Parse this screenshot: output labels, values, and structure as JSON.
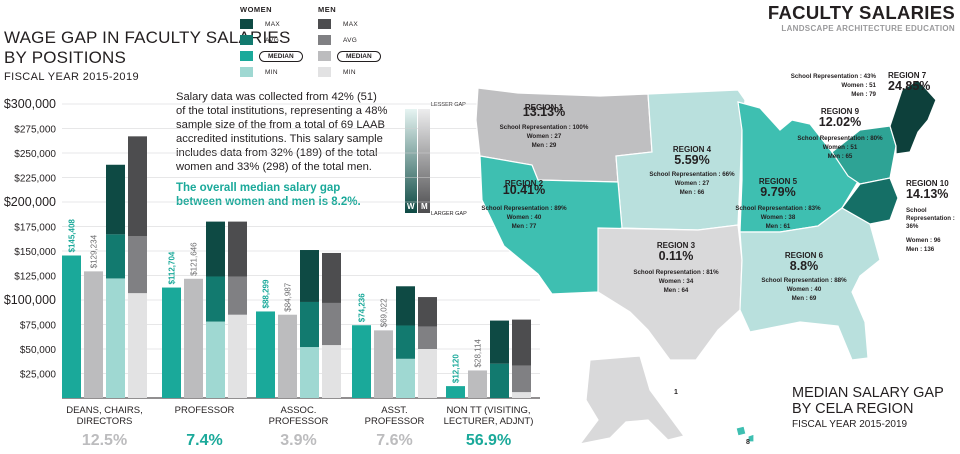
{
  "left_title": {
    "line1": "WAGE GAP IN FACULTY SALARIES",
    "line2": "BY POSITIONS",
    "sub": "FISCAL YEAR 2015-2019"
  },
  "legend": {
    "women_header": "WOMEN",
    "men_header": "MEN",
    "items": [
      "MAX",
      "AVG",
      "MEDIAN",
      "MIN"
    ],
    "women_colors": [
      "#0e4a44",
      "#127a6f",
      "#1aa99a",
      "#9fd8d2"
    ],
    "men_colors": [
      "#4d4d4f",
      "#808083",
      "#bcbcbe",
      "#e2e2e3"
    ]
  },
  "note": {
    "text": "Salary data was collected from 42% (51) of the total institutions, representing a 48% sample size of the from a  total of 69 LAAB accredited institutions. This salary sample includes data from 32% (189) of the total women and 33% (298) of the total men.",
    "highlight": "The overall median salary gap between women and men is 8.2%."
  },
  "gap_scale": {
    "top": "LESSER GAP",
    "bottom": "LARGER GAP",
    "w": "W",
    "m": "M"
  },
  "chart_data": [
    {
      "type": "bar",
      "title": "WAGE GAP IN FACULTY SALARIES BY POSITIONS",
      "subtitle": "FISCAL YEAR 2015-2019",
      "ylim": [
        0,
        300000
      ],
      "yticks": [
        "$25,000",
        "$50,000",
        "$75,000",
        "$100,000",
        "$125,000",
        "$150,000",
        "$175,000",
        "$200,000",
        "$225,000",
        "$250,000",
        "$275,000",
        "$300,000"
      ],
      "grid": true,
      "categories": [
        {
          "label": [
            "DEANS, CHAIRS,",
            "DIRECTORS"
          ],
          "gap": "12.5%",
          "women_median": 145408,
          "women_median_label": "$145,408",
          "men_median": 129234,
          "men_median_label": "$129,234",
          "women": {
            "min": 122000,
            "avg": 167000,
            "max": 238000
          },
          "men": {
            "min": 107000,
            "avg": 165000,
            "max": 267000
          }
        },
        {
          "label": [
            "PROFESSOR"
          ],
          "gap": "7.4%",
          "women_median": 112704,
          "women_median_label": "$112,704",
          "men_median": 121646,
          "men_median_label": "$121,646",
          "women": {
            "min": 78000,
            "avg": 124000,
            "max": 180000
          },
          "men": {
            "min": 85000,
            "avg": 124000,
            "max": 180000
          }
        },
        {
          "label": [
            "ASSOC.",
            "PROFESSOR"
          ],
          "gap": "3.9%",
          "women_median": 88299,
          "women_median_label": "$88,299",
          "men_median": 84987,
          "men_median_label": "$84,987",
          "women": {
            "min": 52000,
            "avg": 98000,
            "max": 151000
          },
          "men": {
            "min": 54000,
            "avg": 97000,
            "max": 148000
          }
        },
        {
          "label": [
            "ASST.",
            "PROFESSOR"
          ],
          "gap": "7.6%",
          "women_median": 74236,
          "women_median_label": "$74,236",
          "men_median": 69022,
          "men_median_label": "$69,022",
          "women": {
            "min": 40000,
            "avg": 74000,
            "max": 114000
          },
          "men": {
            "min": 50000,
            "avg": 73000,
            "max": 103000
          }
        },
        {
          "label": [
            "NON TT (VISITING,",
            "LECTURER, ADJNT)"
          ],
          "gap": "56.9%",
          "women_median": 12120,
          "women_median_label": "$12,120",
          "men_median": 28114,
          "men_median_label": "$28,114",
          "women": {
            "min": 0,
            "avg": 35000,
            "max": 79000
          },
          "men": {
            "min": 6000,
            "avg": 33000,
            "max": 80000
          }
        }
      ]
    },
    {
      "type": "map",
      "title": "MEDIAN SALARY GAP BY CELA REGION",
      "subtitle": "FISCAL YEAR 2015-2019",
      "regions": [
        {
          "name": "REGION 1",
          "gap": "13.13%",
          "rep": "School Representation : 100%",
          "women": "Women : 27",
          "men": "Men : 29"
        },
        {
          "name": "REGION 2",
          "gap": "10.41%",
          "rep": "School Representation : 89%",
          "women": "Women : 40",
          "men": "Men : 77"
        },
        {
          "name": "REGION 3",
          "gap": "0.11%",
          "rep": "School Representation : 81%",
          "women": "Women : 34",
          "men": "Men : 64"
        },
        {
          "name": "REGION 4",
          "gap": "5.59%",
          "rep": "School Representation : 66%",
          "women": "Women : 27",
          "men": "Men : 66"
        },
        {
          "name": "REGION 5",
          "gap": "9.79%",
          "rep": "School Representation : 83%",
          "women": "Women : 38",
          "men": "Men : 61"
        },
        {
          "name": "REGION 6",
          "gap": "8.8%",
          "rep": "School Representation : 88%",
          "women": "Women : 40",
          "men": "Men : 69"
        },
        {
          "name": "REGION 7",
          "gap": "24.85%",
          "rep": "School Representation : 43%",
          "women": "Women : 51",
          "men": "Men : 79"
        },
        {
          "name": "REGION 9",
          "gap": "12.02%",
          "rep": "School Representation : 80%",
          "women": "Women : 51",
          "men": "Men : 65"
        },
        {
          "name": "REGION 10",
          "gap": "14.13%",
          "rep_lines": [
            "School",
            "Representation :",
            "36%"
          ],
          "women": "Women : 96",
          "men": "Men : 136"
        }
      ],
      "alaska_label": "1",
      "hawaii_label": "8"
    }
  ],
  "right_title": {
    "main": "FACULTY SALARIES",
    "sub": "LANDSCAPE ARCHITECTURE EDUCATION",
    "map_line1": "MEDIAN SALARY GAP",
    "map_line2": "BY CELA REGION",
    "map_sub": "FISCAL YEAR 2015-2019"
  },
  "map_colors": {
    "lightest": "#d9d9da",
    "light_gray": "#bfbfc1",
    "light_teal": "#b9e0dd",
    "teal": "#3ebfb1",
    "mid_teal": "#2ea395",
    "dark_teal": "#156f66",
    "darkest": "#0d403b"
  }
}
